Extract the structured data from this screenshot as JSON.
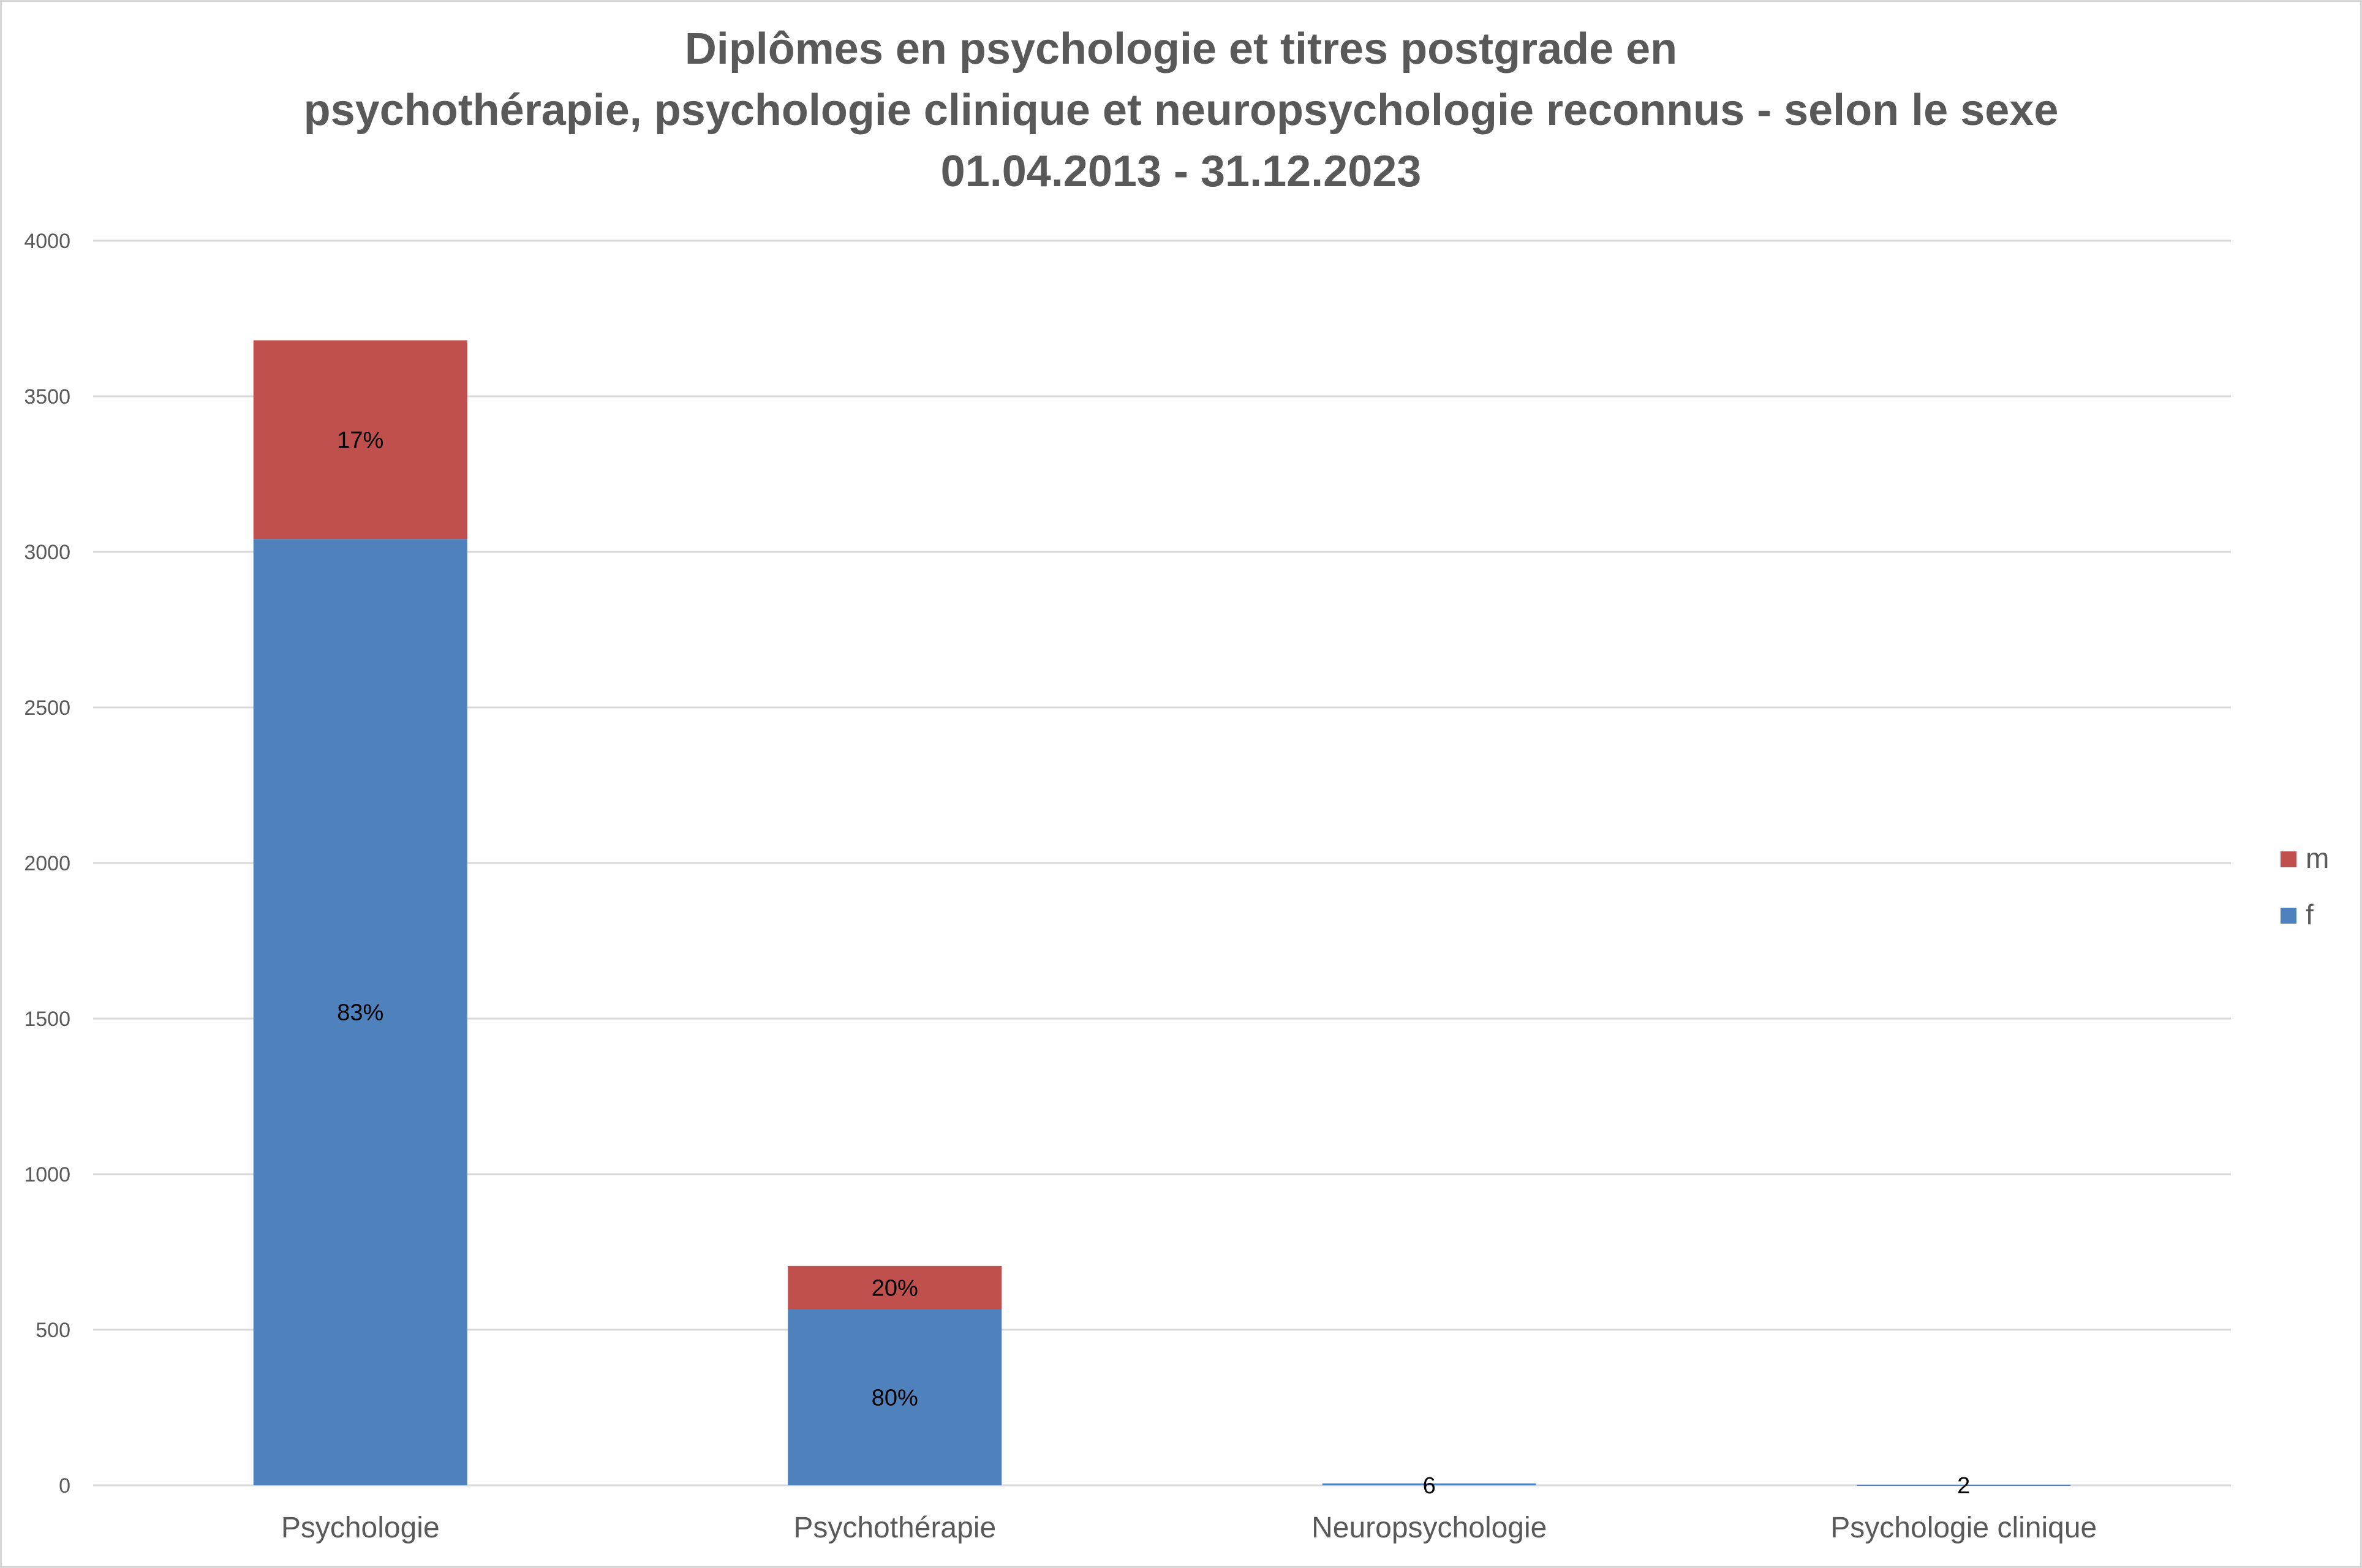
{
  "chart_data": {
    "type": "bar",
    "stacked": true,
    "title": [
      "Diplômes en psychologie et titres postgrade en",
      "psychothérapie, psychologie clinique et neuropsychologie reconnus - selon le sexe",
      "01.04.2013 - 31.12.2023"
    ],
    "xlabel": "",
    "ylabel": "",
    "ylim": [
      0,
      4000
    ],
    "yticks": [
      0,
      500,
      1000,
      1500,
      2000,
      2500,
      3000,
      3500,
      4000
    ],
    "grid": true,
    "legend_position": "right",
    "categories": [
      "Psychologie",
      "Psychothérapie",
      "Neuropsychologie",
      "Psychologie clinique"
    ],
    "series": [
      {
        "name": "f",
        "color": "#4f81bd",
        "values": [
          3041,
          565,
          6,
          2
        ],
        "labels": [
          "83%",
          "80%",
          "",
          ""
        ]
      },
      {
        "name": "m",
        "color": "#c0504d",
        "values": [
          639,
          140,
          0,
          0
        ],
        "labels": [
          "17%",
          "20%",
          "",
          ""
        ]
      }
    ],
    "total_labels": [
      "",
      "",
      "6",
      "2"
    ]
  }
}
